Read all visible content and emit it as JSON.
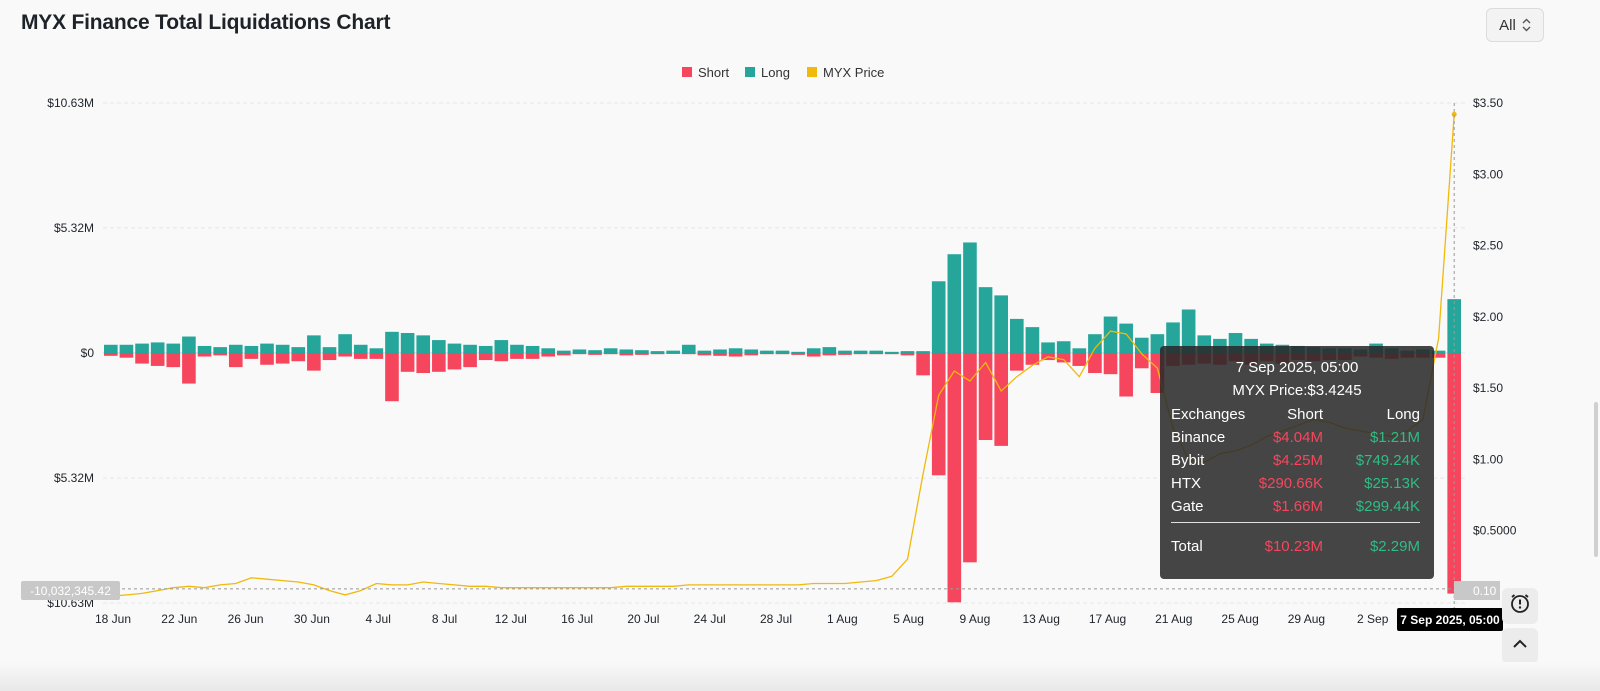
{
  "page": {
    "title": "MYX Finance Total Liquidations Chart",
    "range_selector": {
      "label": "All",
      "icon": "chevron-updown-icon"
    }
  },
  "colors": {
    "short": "#f6465d",
    "long": "#26a69a",
    "price": "#f0b90b",
    "crosshair_label_bg": "#000000"
  },
  "chart_data": {
    "type": "bar",
    "title": "MYX Finance Total Liquidations Chart",
    "legend": {
      "position": "top-center",
      "entries": [
        "Short",
        "Long",
        "MYX Price"
      ]
    },
    "grid": true,
    "x_ticks": [
      "18 Jun",
      "22 Jun",
      "26 Jun",
      "30 Jun",
      "4 Jul",
      "8 Jul",
      "12 Jul",
      "16 Jul",
      "20 Jul",
      "24 Jul",
      "28 Jul",
      "1 Aug",
      "5 Aug",
      "9 Aug",
      "13 Aug",
      "17 Aug",
      "21 Aug",
      "25 Aug",
      "29 Aug",
      "2 Sep",
      "7 Sep 2025, 05:00"
    ],
    "y_left": {
      "ylim": [
        -10.63,
        10.63
      ],
      "unit": "M USD",
      "tick_labels": [
        "$10.63M",
        "$5.32M",
        "$0",
        "$5.32M",
        "$10.63M"
      ],
      "tick_values": [
        10.63,
        5.32,
        0,
        -5.32,
        -10.63
      ]
    },
    "y_right": {
      "ylim": [
        0,
        3.5
      ],
      "unit": "USD",
      "tick_labels": [
        "$3.50",
        "$3.00",
        "$2.50",
        "$2.00",
        "$1.50",
        "$1.00",
        "$0.5000",
        "0.10"
      ],
      "tick_values": [
        3.5,
        3.0,
        2.5,
        2.0,
        1.5,
        1.0,
        0.5,
        0.1
      ]
    },
    "crosshair": {
      "x_label": "7 Sep 2025, 05:00",
      "y_label": "-10,032,345.42"
    },
    "x_start_date": "18 Jun",
    "series": [
      {
        "name": "Long",
        "axis": "left",
        "values": [
          0.35,
          0.35,
          0.4,
          0.45,
          0.4,
          0.7,
          0.3,
          0.25,
          0.35,
          0.3,
          0.4,
          0.35,
          0.25,
          0.75,
          0.25,
          0.8,
          0.35,
          0.2,
          0.9,
          0.85,
          0.75,
          0.55,
          0.4,
          0.35,
          0.3,
          0.55,
          0.35,
          0.3,
          0.2,
          0.1,
          0.15,
          0.12,
          0.2,
          0.15,
          0.12,
          0.08,
          0.1,
          0.35,
          0.1,
          0.15,
          0.2,
          0.15,
          0.1,
          0.1,
          0.05,
          0.2,
          0.25,
          0.1,
          0.1,
          0.1,
          0.05,
          0.08,
          0.08,
          3.05,
          4.2,
          4.7,
          2.8,
          2.45,
          1.45,
          1.1,
          0.45,
          0.5,
          0.2,
          0.8,
          1.55,
          1.25,
          0.65,
          0.8,
          1.3,
          1.85,
          0.75,
          0.6,
          0.85,
          0.6,
          0.4,
          0.35,
          0.3,
          0.25,
          0.2,
          0.2,
          0.15,
          0.4,
          0.2,
          0.1,
          0.15,
          0.1,
          2.29
        ]
      },
      {
        "name": "Short",
        "axis": "left",
        "values": [
          -0.12,
          -0.2,
          -0.45,
          -0.55,
          -0.6,
          -1.3,
          -0.15,
          -0.1,
          -0.6,
          -0.25,
          -0.5,
          -0.45,
          -0.35,
          -0.75,
          -0.3,
          -0.15,
          -0.25,
          -0.25,
          -2.05,
          -0.8,
          -0.85,
          -0.8,
          -0.7,
          -0.6,
          -0.3,
          -0.35,
          -0.25,
          -0.25,
          -0.15,
          -0.1,
          -0.05,
          -0.08,
          -0.05,
          -0.1,
          -0.08,
          -0.05,
          -0.04,
          -0.05,
          -0.1,
          -0.12,
          -0.15,
          -0.1,
          -0.05,
          -0.05,
          -0.08,
          -0.15,
          -0.1,
          -0.08,
          -0.05,
          -0.05,
          -0.05,
          -0.1,
          -0.95,
          -5.2,
          -10.6,
          -8.9,
          -3.7,
          -3.95,
          -0.75,
          -0.5,
          -0.3,
          -0.4,
          -0.55,
          -0.85,
          -0.9,
          -1.85,
          -0.65,
          -1.7,
          -0.55,
          -0.5,
          -0.45,
          -0.5,
          -0.35,
          -0.5,
          -0.35,
          -0.45,
          -0.3,
          -0.35,
          -0.3,
          -0.3,
          -0.15,
          -0.2,
          -0.25,
          -0.2,
          -0.2,
          -0.2,
          -10.23
        ]
      },
      {
        "name": "MYX Price",
        "axis": "right",
        "type": "line",
        "values": [
          0.04,
          0.05,
          0.06,
          0.08,
          0.1,
          0.11,
          0.1,
          0.12,
          0.13,
          0.17,
          0.16,
          0.15,
          0.14,
          0.12,
          0.08,
          0.05,
          0.08,
          0.13,
          0.12,
          0.12,
          0.14,
          0.13,
          0.12,
          0.11,
          0.11,
          0.1,
          0.1,
          0.1,
          0.1,
          0.1,
          0.1,
          0.1,
          0.1,
          0.11,
          0.11,
          0.11,
          0.11,
          0.12,
          0.12,
          0.12,
          0.12,
          0.12,
          0.12,
          0.12,
          0.12,
          0.13,
          0.13,
          0.13,
          0.14,
          0.15,
          0.18,
          0.3,
          0.9,
          1.45,
          1.62,
          1.55,
          1.68,
          1.48,
          1.58,
          1.66,
          1.72,
          1.7,
          1.58,
          1.78,
          1.9,
          1.88,
          1.74,
          1.64,
          1.22,
          1.0,
          0.98,
          1.04,
          1.06,
          1.1,
          1.16,
          1.2,
          1.24,
          1.28,
          1.26,
          1.22,
          1.2,
          1.18,
          1.16,
          1.2,
          1.28,
          1.85,
          3.42
        ]
      }
    ]
  },
  "tooltip": {
    "time": "7 Sep 2025, 05:00",
    "price": "MYX Price:$3.4245",
    "header": {
      "exchange": "Exchanges",
      "short": "Short",
      "long": "Long"
    },
    "rows": [
      {
        "exchange": "Binance",
        "short": "$4.04M",
        "long": "$1.21M"
      },
      {
        "exchange": "Bybit",
        "short": "$4.25M",
        "long": "$749.24K"
      },
      {
        "exchange": "HTX",
        "short": "$290.66K",
        "long": "$25.13K"
      },
      {
        "exchange": "Gate",
        "short": "$1.66M",
        "long": "$299.44K"
      }
    ],
    "total": {
      "label": "Total",
      "short": "$10.23M",
      "long": "$2.29M"
    }
  },
  "side_buttons": {
    "top": "alert-clock-icon",
    "bottom": "chevron-up-icon"
  }
}
